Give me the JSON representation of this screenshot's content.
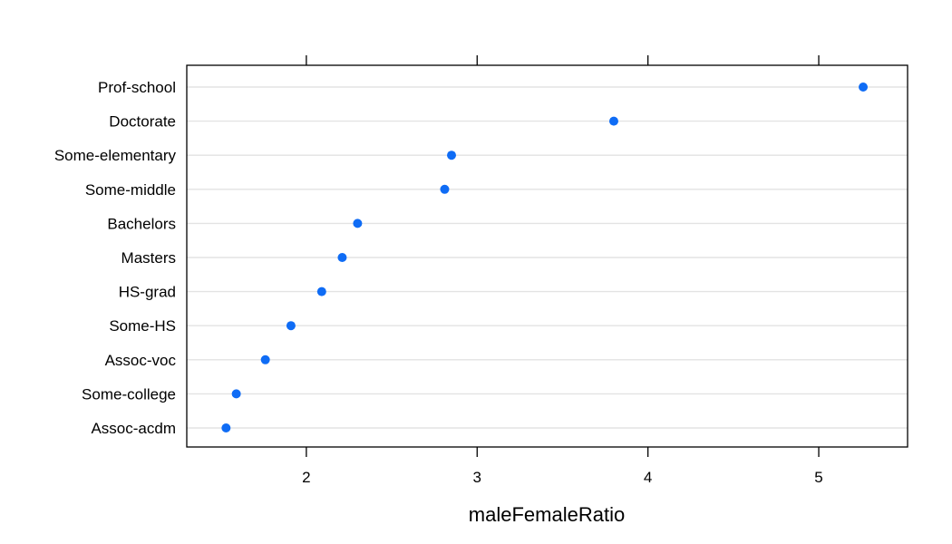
{
  "chart_data": {
    "type": "scatter",
    "subtype": "dotplot",
    "title": "",
    "xlabel": "maleFemaleRatio",
    "ylabel": "",
    "categories": [
      "Assoc-acdm",
      "Some-college",
      "Assoc-voc",
      "Some-HS",
      "HS-grad",
      "Masters",
      "Bachelors",
      "Some-middle",
      "Some-elementary",
      "Doctorate",
      "Prof-school"
    ],
    "values": [
      1.53,
      1.59,
      1.76,
      1.91,
      2.09,
      2.21,
      2.3,
      2.81,
      2.85,
      3.8,
      5.26
    ],
    "xlim": [
      1.3,
      5.52
    ],
    "xticks": [
      2,
      3,
      4,
      5
    ],
    "xtick_labels": [
      "2",
      "3",
      "4",
      "5"
    ],
    "grid": "horizontal",
    "colors": {
      "point": "#0f6cf5",
      "gridline": "#e3e3e3",
      "frame": "#000000"
    }
  }
}
